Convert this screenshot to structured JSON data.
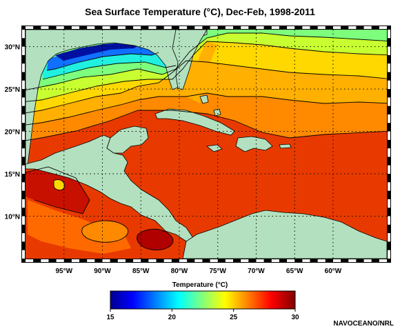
{
  "title": "Sea Surface Temperature (°C), Dec-Feb, 1998-2011",
  "map": {
    "lon_range": [
      -100,
      -53
    ],
    "lat_range": [
      5,
      32
    ],
    "lon_ticks": [
      "95°W",
      "90°W",
      "85°W",
      "80°W",
      "75°W",
      "70°W",
      "65°W",
      "60°W"
    ],
    "lat_ticks": [
      "30°N",
      "25°N",
      "20°N",
      "15°N",
      "10°N"
    ],
    "land_color": "#b3e0bf",
    "grid": true
  },
  "colorbar": {
    "title": "Temperature (°C)",
    "min": 15,
    "max": 30,
    "tick_labels": [
      "15",
      "20",
      "25",
      "30"
    ],
    "colormap": "jet"
  },
  "credit": "NAVOCEANO/NRL"
}
